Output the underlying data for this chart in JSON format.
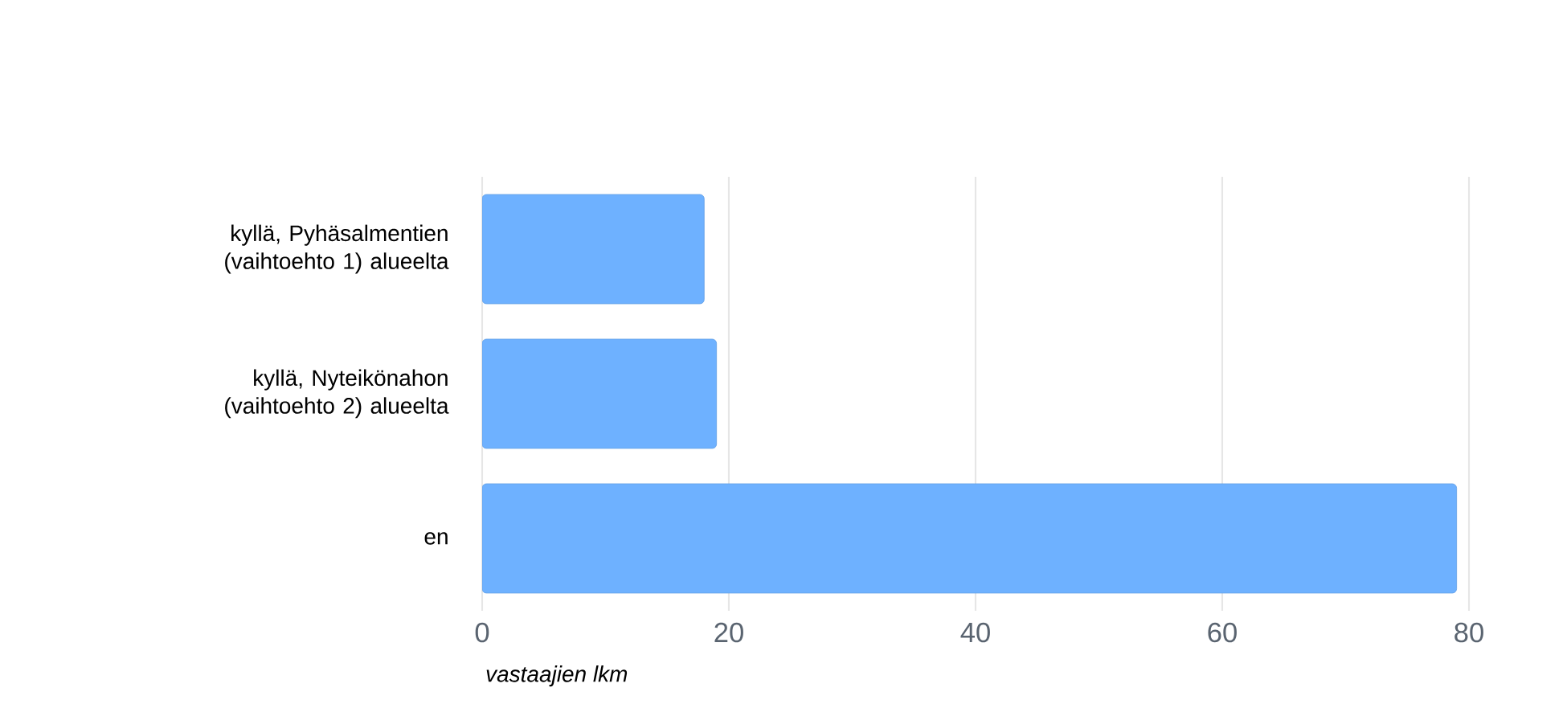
{
  "chart_data": {
    "type": "bar",
    "orientation": "horizontal",
    "xlabel": "vastaajien lkm",
    "categories": [
      "kyllä, Pyhäsalmentien (vaihtoehto 1) alueelta",
      "kyllä, Nyteikönahon (vaihtoehto 2) alueelta",
      "en"
    ],
    "values": [
      18,
      19,
      79
    ],
    "color": "#6eb1ff",
    "xlim": [
      0,
      80
    ],
    "xticks": [
      0,
      20,
      40,
      60,
      80
    ],
    "grid": "x"
  }
}
